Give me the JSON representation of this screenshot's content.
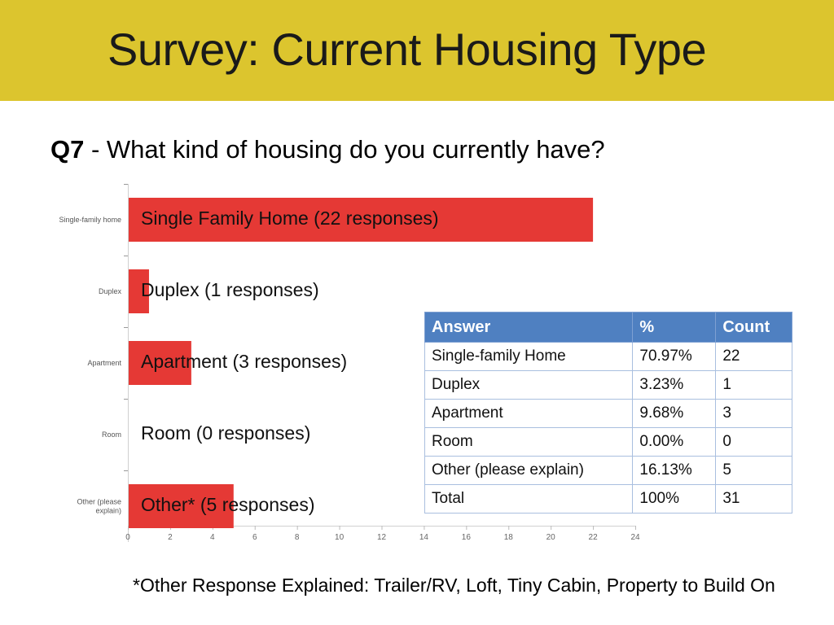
{
  "slide": {
    "title": "Survey: Current Housing Type",
    "question_number": "Q7",
    "question_text": " - What kind of housing do you currently have?",
    "footnote": "*Other Response Explained: Trailer/RV, Loft, Tiny Cabin, Property to Build On"
  },
  "colors": {
    "header": "#dcc52e",
    "bar": "#e53935",
    "table_header": "#4f80c1"
  },
  "chart_data": {
    "type": "bar",
    "orientation": "horizontal",
    "categories": [
      "Single-family home",
      "Duplex",
      "Apartment",
      "Room",
      "Other (please explain)"
    ],
    "values": [
      22,
      1,
      3,
      0,
      5
    ],
    "bar_labels": [
      "Single Family Home (22 responses)",
      "Duplex (1 responses)",
      "Apartment  (3 responses)",
      "Room  (0 responses)",
      "Other*  (5 responses)"
    ],
    "xlim": [
      0,
      24
    ],
    "xticks": [
      0,
      2,
      4,
      6,
      8,
      10,
      12,
      14,
      16,
      18,
      20,
      22,
      24
    ]
  },
  "table": {
    "headers": [
      "Answer",
      "%",
      "Count"
    ],
    "rows": [
      [
        "Single-family Home",
        "70.97%",
        "22"
      ],
      [
        "Duplex",
        "3.23%",
        "1"
      ],
      [
        "Apartment",
        "9.68%",
        "3"
      ],
      [
        "Room",
        "0.00%",
        "0"
      ],
      [
        "Other (please explain)",
        "16.13%",
        "5"
      ],
      [
        "Total",
        "100%",
        "31"
      ]
    ]
  }
}
